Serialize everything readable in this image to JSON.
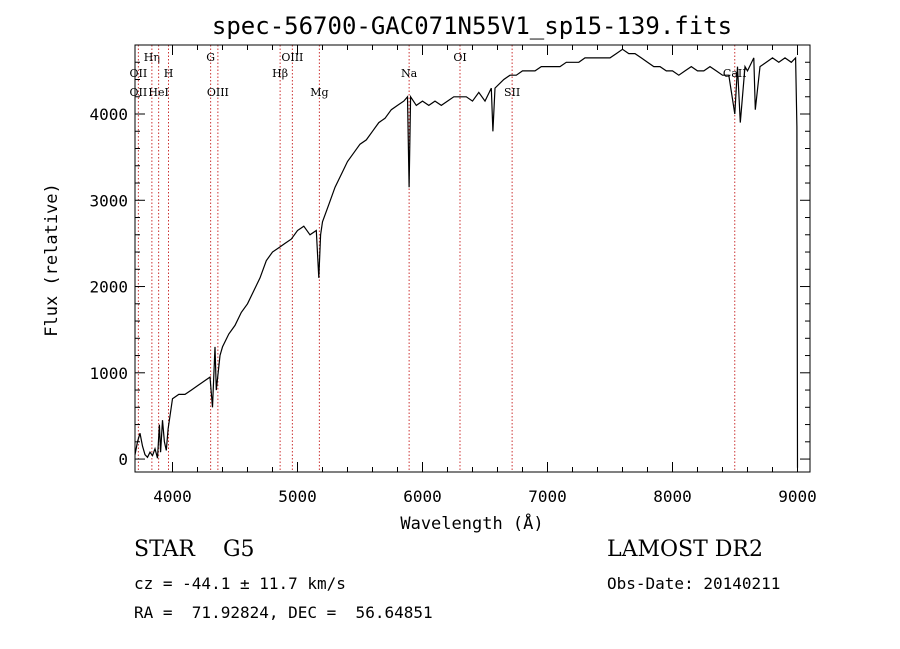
{
  "chart_data": {
    "type": "line",
    "title": "spec-56700-GAC071N55V1_sp15-139.fits",
    "xlabel": "Wavelength (Å)",
    "ylabel": "Flux (relative)",
    "xlim": [
      3700,
      9100
    ],
    "ylim": [
      -150,
      4800
    ],
    "x_ticks": [
      4000,
      5000,
      6000,
      7000,
      8000,
      9000
    ],
    "y_ticks": [
      0,
      1000,
      2000,
      3000,
      4000
    ],
    "grid": false,
    "line_color": "#000000",
    "marker_color": "#cc3333",
    "spectrum": {
      "x": [
        3700,
        3720,
        3740,
        3760,
        3780,
        3800,
        3820,
        3840,
        3860,
        3880,
        3895,
        3905,
        3920,
        3935,
        3950,
        3965,
        3980,
        4000,
        4050,
        4100,
        4150,
        4200,
        4250,
        4300,
        4320,
        4340,
        4350,
        4380,
        4400,
        4450,
        4500,
        4550,
        4600,
        4650,
        4700,
        4750,
        4800,
        4850,
        4900,
        4950,
        5000,
        5050,
        5100,
        5150,
        5170,
        5185,
        5200,
        5250,
        5300,
        5350,
        5400,
        5450,
        5500,
        5550,
        5600,
        5650,
        5700,
        5750,
        5800,
        5850,
        5880,
        5893,
        5905,
        5950,
        6000,
        6050,
        6100,
        6150,
        6200,
        6250,
        6300,
        6350,
        6400,
        6450,
        6500,
        6550,
        6563,
        6580,
        6650,
        6700,
        6750,
        6800,
        6850,
        6900,
        6950,
        7000,
        7050,
        7100,
        7150,
        7200,
        7250,
        7300,
        7350,
        7400,
        7450,
        7500,
        7550,
        7600,
        7650,
        7700,
        7750,
        7800,
        7850,
        7900,
        7950,
        8000,
        8050,
        8100,
        8150,
        8200,
        8250,
        8300,
        8350,
        8400,
        8450,
        8498,
        8520,
        8542,
        8580,
        8600,
        8650,
        8662,
        8700,
        8750,
        8800,
        8850,
        8900,
        8950,
        8985,
        8995,
        9000
      ],
      "y": [
        50,
        200,
        300,
        150,
        50,
        20,
        80,
        40,
        120,
        10,
        400,
        80,
        450,
        200,
        100,
        350,
        500,
        700,
        750,
        750,
        800,
        850,
        900,
        950,
        600,
        1300,
        800,
        1200,
        1300,
        1450,
        1550,
        1700,
        1800,
        1950,
        2100,
        2300,
        2400,
        2450,
        2500,
        2550,
        2650,
        2700,
        2600,
        2650,
        2100,
        2600,
        2750,
        2950,
        3150,
        3300,
        3450,
        3550,
        3650,
        3700,
        3800,
        3900,
        3950,
        4050,
        4100,
        4150,
        4200,
        3150,
        4200,
        4100,
        4150,
        4100,
        4150,
        4100,
        4150,
        4200,
        4200,
        4200,
        4150,
        4250,
        4150,
        4300,
        3800,
        4300,
        4400,
        4450,
        4450,
        4500,
        4500,
        4500,
        4550,
        4550,
        4550,
        4550,
        4600,
        4600,
        4600,
        4650,
        4650,
        4650,
        4650,
        4650,
        4700,
        4750,
        4700,
        4700,
        4650,
        4600,
        4550,
        4550,
        4500,
        4500,
        4450,
        4500,
        4550,
        4500,
        4500,
        4550,
        4500,
        4450,
        4450,
        4000,
        4550,
        3900,
        4550,
        4500,
        4650,
        4050,
        4550,
        4600,
        4650,
        4600,
        4650,
        4600,
        4650,
        3850,
        -100
      ]
    },
    "line_markers": [
      {
        "label": "OII",
        "x": 3727,
        "row": 2
      },
      {
        "label": "OII",
        "x": 3727,
        "row": 3
      },
      {
        "label": "Hη",
        "x": 3835,
        "row": 1
      },
      {
        "label": "HeI",
        "x": 3889,
        "row": 3
      },
      {
        "label": "H",
        "x": 3968,
        "row": 2
      },
      {
        "label": "G",
        "x": 4305,
        "row": 1
      },
      {
        "label": "OIII",
        "x": 4363,
        "row": 3
      },
      {
        "label": "Hβ",
        "x": 4861,
        "row": 2
      },
      {
        "label": "OIII",
        "x": 4959,
        "row": 1
      },
      {
        "label": "Mg",
        "x": 5175,
        "row": 3
      },
      {
        "label": "Na",
        "x": 5893,
        "row": 2
      },
      {
        "label": "OI",
        "x": 6300,
        "row": 1
      },
      {
        "label": "SII",
        "x": 6717,
        "row": 3
      },
      {
        "label": "CaII",
        "x": 8498,
        "row": 2
      }
    ]
  },
  "info": {
    "class_line": "STAR    G5",
    "survey": "LAMOST DR2",
    "cz_line": "cz = -44.1 ± 11.7 km/s",
    "obs_date": "Obs-Date: 20140211",
    "radec_line": "RA =  71.92824, DEC =  56.64851"
  }
}
